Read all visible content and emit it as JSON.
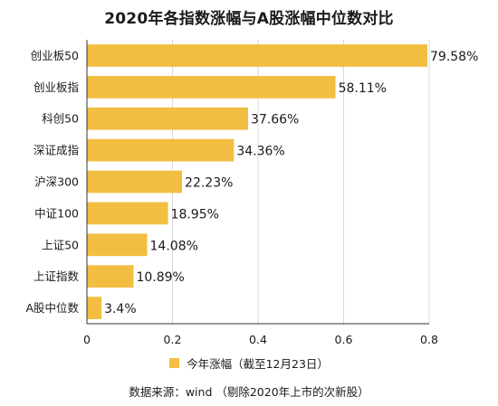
{
  "colors": {
    "bar": "#F2BE42",
    "grid": "#d9d9d9",
    "axis": "#333333",
    "text": "#1a1a1a"
  },
  "chart_data": {
    "type": "bar",
    "orientation": "horizontal",
    "title": "2020年各指数涨幅与A股涨幅中位数对比",
    "categories": [
      "创业板50",
      "创业板指",
      "科创50",
      "深证成指",
      "沪深300",
      "中证100",
      "上证50",
      "上证指数",
      "A股中位数"
    ],
    "series": [
      {
        "name": "今年涨幅（截至12月23日）",
        "values": [
          0.7958,
          0.5811,
          0.3766,
          0.3436,
          0.2223,
          0.1895,
          0.1408,
          0.1089,
          0.034
        ],
        "labels": [
          "79.58%",
          "58.11%",
          "37.66%",
          "34.36%",
          "22.23%",
          "18.95%",
          "14.08%",
          "10.89%",
          "3.4%"
        ]
      }
    ],
    "xlim": [
      0,
      0.8
    ],
    "xticks": [
      0,
      0.2,
      0.4,
      0.6,
      0.8
    ],
    "xtick_labels": [
      "0",
      "0.2",
      "0.4",
      "0.6",
      "0.8"
    ],
    "xlabel": "",
    "ylabel": "",
    "grid": true,
    "legend_position": "bottom"
  },
  "footer": "数据来源：wind （剔除2020年上市的次新股）"
}
